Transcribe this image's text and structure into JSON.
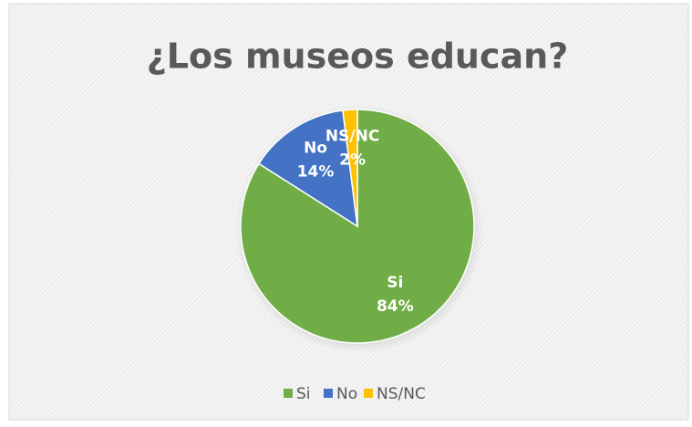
{
  "chart_data": {
    "type": "pie",
    "title": "¿Los museos educan?",
    "categories": [
      "Si",
      "No",
      "NS/NC"
    ],
    "values": [
      84,
      14,
      2
    ],
    "value_labels": [
      "84%",
      "14%",
      "2%"
    ],
    "colors": [
      "#70ad47",
      "#4472c4",
      "#ffc000"
    ],
    "legend": "bottom"
  }
}
